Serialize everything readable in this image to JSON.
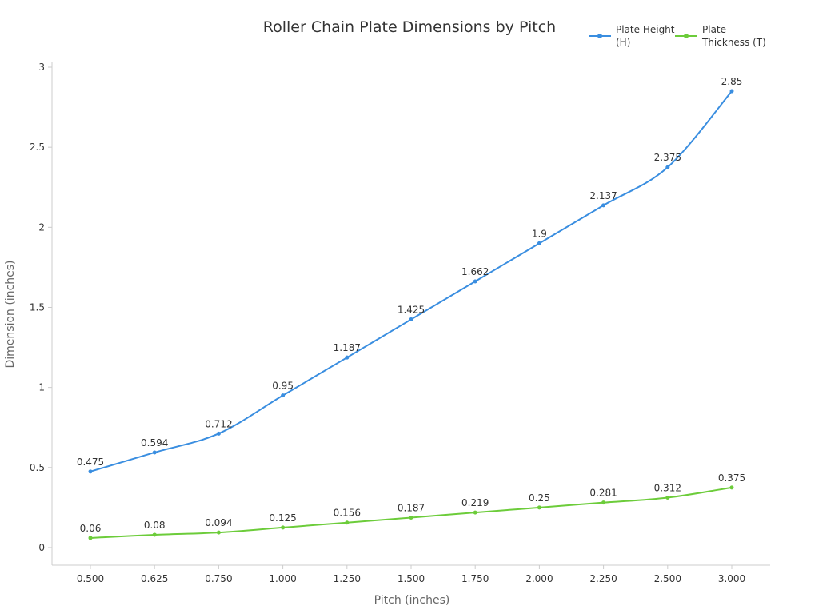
{
  "chart_data": {
    "type": "line",
    "title": "Roller Chain Plate Dimensions by Pitch",
    "x_label": "Pitch (inches)",
    "y_label": "Dimension (inches)",
    "categories": [
      "0.500",
      "0.625",
      "0.750",
      "1.000",
      "1.250",
      "1.500",
      "1.750",
      "2.000",
      "2.250",
      "2.500",
      "3.000"
    ],
    "series": [
      {
        "name": "Plate Height (H)",
        "color": "#3a8ee0",
        "values": [
          0.475,
          0.594,
          0.712,
          0.95,
          1.187,
          1.425,
          1.662,
          1.9,
          2.137,
          2.375,
          2.85
        ]
      },
      {
        "name": "Plate Thickness (T)",
        "color": "#6ccc3a",
        "values": [
          0.06,
          0.08,
          0.094,
          0.125,
          0.156,
          0.187,
          0.219,
          0.25,
          0.281,
          0.312,
          0.375
        ]
      }
    ],
    "ylim": [
      -0.11,
      3.03
    ],
    "yticks": [
      0,
      0.5,
      1,
      1.5,
      2,
      2.5,
      3
    ],
    "legend": "top-right"
  }
}
